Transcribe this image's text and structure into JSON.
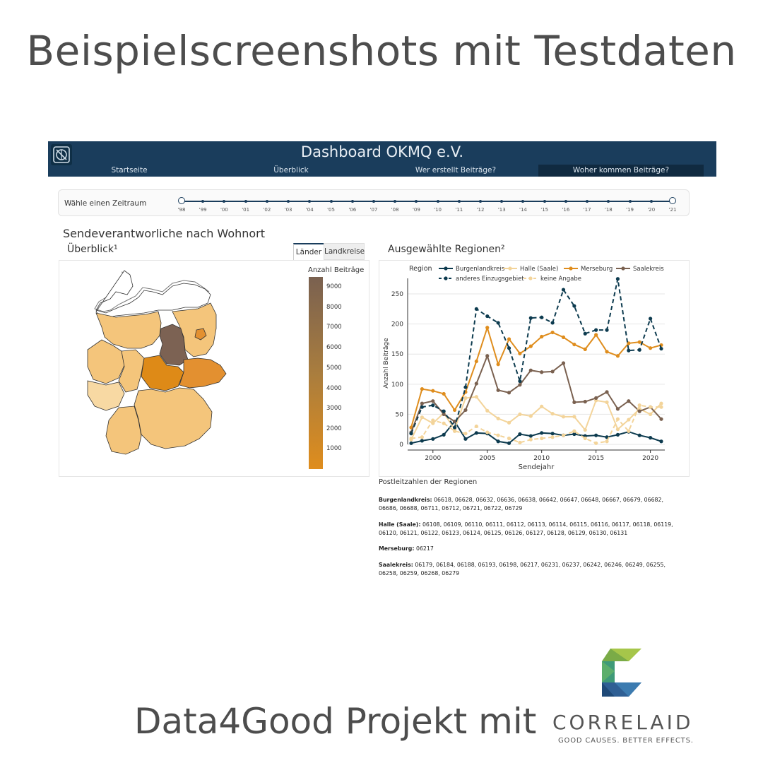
{
  "headline": "Beispielscreenshots mit Testdaten",
  "footer": {
    "text": "Data4Good Projekt mit",
    "brand": "CORRELAID",
    "tagline": "GOOD CAUSES. BETTER EFFECTS."
  },
  "navbar": {
    "title": "Dashboard OKMQ e.V.",
    "links": [
      "Startseite",
      "Überblick",
      "Wer erstellt Beiträge?",
      "Woher kommen Beiträge?"
    ],
    "active_index": 3
  },
  "slider": {
    "label": "Wähle einen Zeitraum",
    "years": [
      "'98",
      "'99",
      "'00",
      "'01",
      "'02",
      "'03",
      "'04",
      "'05",
      "'06",
      "'07",
      "'08",
      "'09",
      "'10",
      "'11",
      "'12",
      "'13",
      "'14",
      "'15",
      "'16",
      "'17",
      "'18",
      "'19",
      "'20",
      "'21"
    ]
  },
  "left": {
    "title": "Sendeverantworliche nach Wohnort",
    "subtitle": "Überblick¹",
    "tabs": [
      "Länder",
      "Landkreise"
    ],
    "legend_title": "Anzahl Beiträge",
    "legend_ticks": [
      "9000",
      "8000",
      "7000",
      "6000",
      "5000",
      "4000",
      "3000",
      "2000",
      "1000"
    ]
  },
  "right": {
    "title": "Ausgewählte Regionen²",
    "plz_title": "Postleitzahlen der Regionen",
    "plz": [
      {
        "name": "Burgenlandkreis:",
        "codes": "06618, 06628, 06632, 06636, 06638, 06642, 06647, 06648, 06667, 06679, 06682, 06686, 06688, 06711, 06712, 06721, 06722, 06729"
      },
      {
        "name": "Halle (Saale):",
        "codes": "06108, 06109, 06110, 06111, 06112, 06113, 06114, 06115, 06116, 06117, 06118, 06119, 06120, 06121, 06122, 06123, 06124, 06125, 06126, 06127, 06128, 06129, 06130, 06131"
      },
      {
        "name": "Merseburg:",
        "codes": "06217"
      },
      {
        "name": "Saalekreis:",
        "codes": "06179, 06184, 06188, 06193, 06198, 06217, 06231, 06237, 06242, 06246, 06249, 06255, 06258, 06259, 06268, 06279"
      }
    ]
  },
  "chart_data": {
    "type": "line",
    "title": "",
    "xlabel": "Sendejahr",
    "ylabel": "Anzahl Beiträge",
    "legend_title": "Region",
    "xlim": [
      1998,
      2021
    ],
    "ylim": [
      0,
      270
    ],
    "xticks": [
      2000,
      2005,
      2010,
      2015,
      2020
    ],
    "yticks": [
      0,
      50,
      100,
      150,
      200,
      250
    ],
    "x": [
      1998,
      1999,
      2000,
      2001,
      2002,
      2003,
      2004,
      2005,
      2006,
      2007,
      2008,
      2009,
      2010,
      2011,
      2012,
      2013,
      2014,
      2015,
      2016,
      2017,
      2018,
      2019,
      2020,
      2021
    ],
    "series": [
      {
        "name": "Burgenlandkreis",
        "color": "#0d3b4f",
        "dash": false,
        "values": [
          2,
          6,
          9,
          16,
          38,
          9,
          19,
          18,
          5,
          2,
          17,
          14,
          19,
          18,
          15,
          17,
          14,
          15,
          12,
          16,
          21,
          15,
          11,
          5
        ]
      },
      {
        "name": "Halle (Saale)",
        "color": "#f3d49a",
        "dash": false,
        "values": [
          8,
          45,
          35,
          52,
          25,
          77,
          79,
          56,
          43,
          36,
          50,
          47,
          63,
          51,
          46,
          46,
          24,
          73,
          70,
          25,
          41,
          59,
          50,
          68
        ]
      },
      {
        "name": "Merseburg",
        "color": "#df8d1d",
        "dash": false,
        "values": [
          28,
          92,
          89,
          84,
          57,
          87,
          138,
          194,
          133,
          175,
          151,
          163,
          179,
          186,
          178,
          166,
          158,
          182,
          154,
          147,
          168,
          170,
          160,
          165
        ]
      },
      {
        "name": "Saalekreis",
        "color": "#7a6150",
        "dash": false,
        "values": [
          20,
          68,
          72,
          50,
          38,
          57,
          101,
          147,
          90,
          86,
          99,
          123,
          120,
          121,
          135,
          70,
          71,
          77,
          87,
          59,
          72,
          55,
          62,
          42
        ]
      },
      {
        "name": "anderes Einzugsgebiet",
        "color": "#0d3b4f",
        "dash": true,
        "values": [
          18,
          62,
          65,
          55,
          28,
          95,
          225,
          213,
          202,
          160,
          105,
          210,
          211,
          202,
          257,
          230,
          184,
          190,
          190,
          275,
          156,
          157,
          209,
          159
        ]
      },
      {
        "name": "keine Angabe",
        "color": "#f3d49a",
        "dash": true,
        "values": [
          10,
          12,
          40,
          35,
          22,
          18,
          30,
          20,
          15,
          10,
          3,
          8,
          10,
          12,
          15,
          22,
          10,
          2,
          5,
          42,
          22,
          65,
          62,
          62
        ]
      }
    ]
  },
  "map_colors": {
    "low": "#f4c57b",
    "lighter": "#f8d9a3",
    "mid_orange": "#de8a17",
    "saxony": "#e39030",
    "dark": "#7c6253",
    "outline": "#333333",
    "coast": "#777777"
  }
}
